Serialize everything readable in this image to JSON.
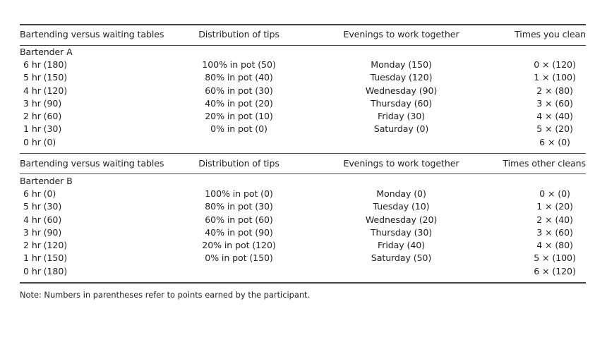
{
  "block_a": {
    "headers": [
      "Bartending versus waiting tables",
      "Distribution of tips",
      "Evenings to work together",
      "Times you clean"
    ],
    "group_label": "Bartender A",
    "rows": [
      [
        "6 hr (180)",
        "100% in pot (50)",
        "Monday (150)",
        "0 × (120)"
      ],
      [
        "5 hr (150)",
        "80% in pot (40)",
        "Tuesday (120)",
        "1 × (100)"
      ],
      [
        "4 hr (120)",
        "60% in pot (30)",
        "Wednesday (90)",
        "2 × (80)"
      ],
      [
        "3 hr (90)",
        "40% in pot (20)",
        "Thursday (60)",
        "3 × (60)"
      ],
      [
        "2 hr (60)",
        "20% in pot (10)",
        "Friday (30)",
        "4 × (40)"
      ],
      [
        "1 hr (30)",
        "0% in pot (0)",
        "Saturday (0)",
        "5 × (20)"
      ],
      [
        "0 hr (0)",
        "",
        "",
        "6 × (0)"
      ]
    ]
  },
  "block_b": {
    "headers": [
      "Bartending versus waiting tables",
      "Distribution of tips",
      "Evenings to work together",
      "Times other cleans"
    ],
    "group_label": "Bartender B",
    "rows": [
      [
        "6 hr (0)",
        "100% in pot (0)",
        "Monday (0)",
        "0 × (0)"
      ],
      [
        "5 hr (30)",
        "80% in pot (30)",
        "Tuesday (10)",
        "1 × (20)"
      ],
      [
        "4 hr (60)",
        "60% in pot (60)",
        "Wednesday (20)",
        "2 × (40)"
      ],
      [
        "3 hr (90)",
        "40% in pot (90)",
        "Thursday (30)",
        "3 × (60)"
      ],
      [
        "2 hr (120)",
        "20% in pot (120)",
        "Friday (40)",
        "4 × (80)"
      ],
      [
        "1 hr (150)",
        "0% in pot (150)",
        "Saturday (50)",
        "5 × (100)"
      ],
      [
        "0 hr (180)",
        "",
        "",
        "6 × (120)"
      ]
    ]
  },
  "note": "Note: Numbers in parentheses refer to points earned by the participant."
}
